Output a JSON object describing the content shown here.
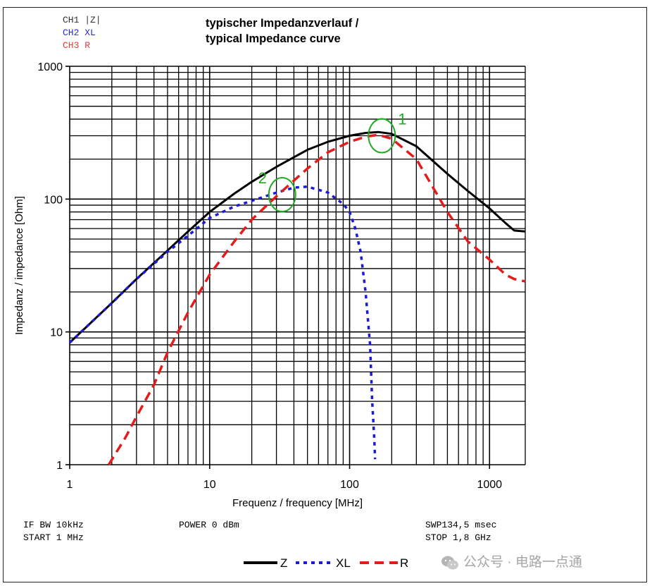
{
  "header": {
    "channels": [
      {
        "label": "CH1 |Z|",
        "color": "#333333"
      },
      {
        "label": "CH2 XL",
        "color": "#2b2bd6"
      },
      {
        "label": "CH3 R",
        "color": "#e23b3b"
      }
    ],
    "title_line1": "typischer Impedanzverlauf /",
    "title_line2": "typical Impedance curve"
  },
  "footer": {
    "if_bw": "IF BW 10kHz",
    "start": "START 1 MHz",
    "power": "POWER 0 dBm",
    "sweep": "SWP134,5 msec",
    "stop": "STOP 1,8 GHz"
  },
  "watermark": "公众号 · 电路一点通",
  "colors": {
    "z": "#000000",
    "xl": "#1a1adb",
    "r": "#e31b1b",
    "annotation": "#22aa22"
  },
  "chart_data": {
    "type": "line",
    "title": "typischer Impedanzverlauf / typical Impedance curve",
    "xlabel": "Frequenz / frequency [MHz]",
    "ylabel": "Impedanz / impedance [Ohm]",
    "xscale": "log",
    "yscale": "log",
    "xlim": [
      1,
      1800
    ],
    "ylim": [
      1,
      1000
    ],
    "x_ticks": [
      "1",
      "10",
      "100",
      "1000"
    ],
    "y_ticks": [
      "1",
      "10",
      "100",
      "1000"
    ],
    "grid": true,
    "legend_position": "bottom",
    "series": [
      {
        "name": "Z",
        "style": "solid",
        "x": [
          1,
          2,
          3,
          5,
          7,
          10,
          15,
          20,
          30,
          50,
          70,
          100,
          130,
          160,
          200,
          300,
          500,
          700,
          1000,
          1300,
          1500,
          1800
        ],
        "y": [
          8.3,
          16.5,
          25,
          41,
          57,
          80,
          110,
          135,
          175,
          235,
          270,
          300,
          315,
          320,
          310,
          250,
          155,
          115,
          85,
          66,
          58,
          57
        ]
      },
      {
        "name": "XL",
        "style": "dotted",
        "x": [
          1,
          2,
          3,
          5,
          7,
          10,
          15,
          20,
          30,
          40,
          50,
          70,
          90,
          100,
          110,
          120,
          130,
          140,
          145,
          150,
          152
        ],
        "y": [
          8.3,
          16.5,
          25,
          40,
          53,
          72,
          88,
          97,
          112,
          122,
          124,
          112,
          92,
          80,
          60,
          40,
          20,
          8,
          3,
          1.6,
          1.1
        ]
      },
      {
        "name": "R",
        "style": "dashed",
        "x": [
          1.9,
          2.5,
          3,
          4,
          5,
          7,
          10,
          15,
          20,
          30,
          50,
          70,
          100,
          130,
          160,
          200,
          300,
          500,
          700,
          1000,
          1300,
          1500,
          1800
        ],
        "y": [
          1,
          1.6,
          2.3,
          4,
          7,
          14,
          27,
          48,
          70,
          105,
          170,
          225,
          270,
          295,
          305,
          285,
          200,
          80,
          48,
          35,
          27,
          25,
          24
        ]
      }
    ],
    "annotations": [
      {
        "label": "1",
        "x": 170,
        "y": 300
      },
      {
        "label": "2",
        "x": 33,
        "y": 108
      }
    ]
  }
}
